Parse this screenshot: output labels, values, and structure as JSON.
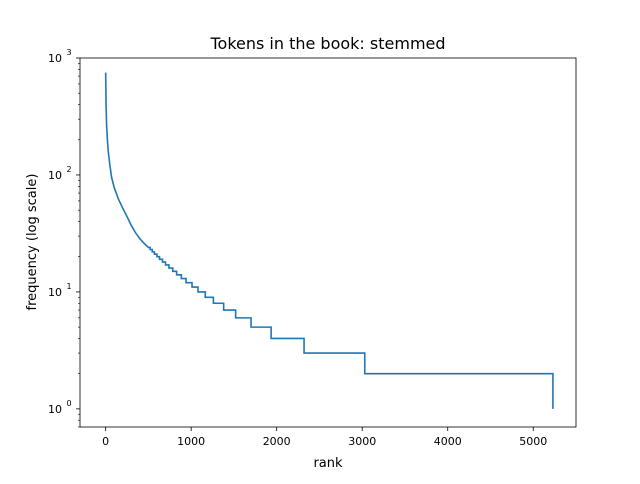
{
  "chart_data": {
    "type": "line",
    "title": "Tokens in the book: stemmed",
    "xlabel": "rank",
    "ylabel": "frequency (log scale)",
    "xscale": "linear",
    "yscale": "log",
    "xlim": [
      -300,
      5500
    ],
    "ylim": [
      0.7,
      1000
    ],
    "grid": false,
    "x_ticks": [
      0,
      1000,
      2000,
      3000,
      4000,
      5000
    ],
    "x_tick_labels": [
      "0",
      "1000",
      "2000",
      "3000",
      "4000",
      "5000"
    ],
    "y_ticks": [
      1,
      10,
      100,
      1000
    ],
    "y_tick_labels": [
      {
        "base": "10",
        "exp": "0"
      },
      {
        "base": "10",
        "exp": "1"
      },
      {
        "base": "10",
        "exp": "2"
      },
      {
        "base": "10",
        "exp": "3"
      }
    ],
    "series": [
      {
        "color": "#1f77b4",
        "x": [
          0,
          5,
          10,
          20,
          30,
          50,
          70,
          100,
          150,
          200,
          250,
          300,
          350,
          400,
          450,
          500,
          520,
          545,
          570,
          600,
          630,
          665,
          700,
          740,
          785,
          830,
          885,
          940,
          1010,
          1080,
          1165,
          1260,
          1380,
          1520,
          1700,
          1935,
          2320,
          3030,
          5230
        ],
        "y": [
          750,
          400,
          280,
          200,
          160,
          120,
          95,
          78,
          62,
          52,
          44,
          37,
          32,
          28.5,
          26,
          24,
          23,
          22,
          21,
          20,
          19,
          18,
          17,
          16,
          15,
          14,
          13,
          12,
          11,
          10,
          9,
          8,
          7,
          6,
          5,
          4,
          3,
          2,
          1
        ],
        "step_from_index": 16
      }
    ]
  }
}
